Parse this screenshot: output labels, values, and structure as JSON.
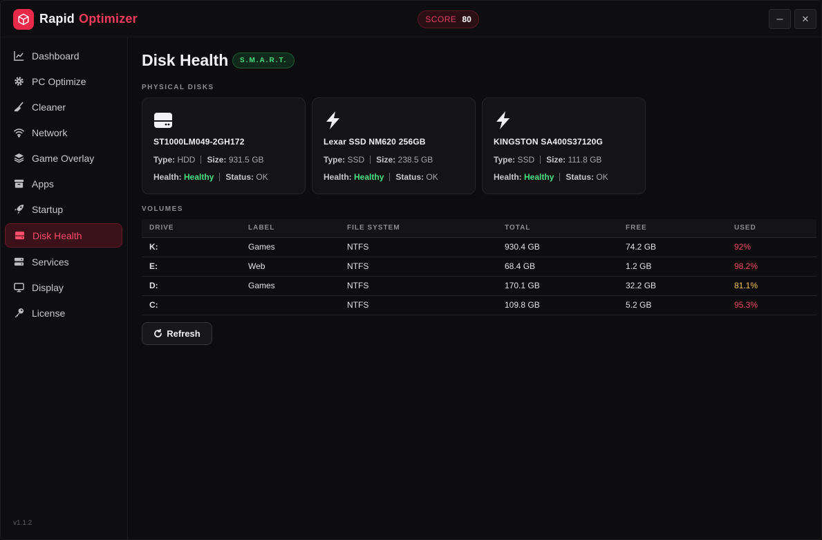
{
  "app": {
    "name_part1": "Rapid",
    "name_part2": "Optimizer",
    "score_label": "SCORE",
    "score_value": "80",
    "minimize_label": "–",
    "close_label": "✕",
    "version": "v1.1.2"
  },
  "sidebar": {
    "items": [
      {
        "label": "Dashboard",
        "icon": "chart-line-icon"
      },
      {
        "label": "PC Optimize",
        "icon": "gear-icon"
      },
      {
        "label": "Cleaner",
        "icon": "broom-icon"
      },
      {
        "label": "Network",
        "icon": "wifi-icon"
      },
      {
        "label": "Game Overlay",
        "icon": "layers-icon"
      },
      {
        "label": "Apps",
        "icon": "archive-icon"
      },
      {
        "label": "Startup",
        "icon": "rocket-icon"
      },
      {
        "label": "Disk Health",
        "icon": "hard-drive-icon",
        "active": true
      },
      {
        "label": "Services",
        "icon": "server-icon"
      },
      {
        "label": "Display",
        "icon": "monitor-icon"
      },
      {
        "label": "License",
        "icon": "key-icon"
      }
    ]
  },
  "page": {
    "title": "Disk Health",
    "badge": "S.M.A.R.T.",
    "physical_label": "PHYSICAL DISKS",
    "volumes_label": "VOLUMES",
    "refresh_label": "Refresh"
  },
  "labels": {
    "type": "Type:",
    "size": "Size:",
    "health": "Health:",
    "status": "Status:"
  },
  "disks": [
    {
      "icon": "hdd-icon",
      "name": "ST1000LM049-2GH172",
      "type": "HDD",
      "size": "931.5 GB",
      "health": "Healthy",
      "status": "OK"
    },
    {
      "icon": "lightning-icon",
      "name": "Lexar SSD NM620 256GB",
      "type": "SSD",
      "size": "238.5 GB",
      "health": "Healthy",
      "status": "OK"
    },
    {
      "icon": "lightning-icon",
      "name": "KINGSTON SA400S37120G",
      "type": "SSD",
      "size": "111.8 GB",
      "health": "Healthy",
      "status": "OK"
    }
  ],
  "volumes": {
    "columns": [
      "DRIVE",
      "LABEL",
      "FILE SYSTEM",
      "TOTAL",
      "FREE",
      "USED"
    ],
    "rows": [
      {
        "drive": "K:",
        "label": "Games",
        "fs": "NTFS",
        "total": "930.4 GB",
        "free": "74.2 GB",
        "used": "92%",
        "used_color": "#ef4a63"
      },
      {
        "drive": "E:",
        "label": "Web",
        "fs": "NTFS",
        "total": "68.4 GB",
        "free": "1.2 GB",
        "used": "98.2%",
        "used_color": "#ef4a63"
      },
      {
        "drive": "D:",
        "label": "Games",
        "fs": "NTFS",
        "total": "170.1 GB",
        "free": "32.2 GB",
        "used": "81.1%",
        "used_color": "#f5c451"
      },
      {
        "drive": "C:",
        "label": "",
        "fs": "NTFS",
        "total": "109.8 GB",
        "free": "5.2 GB",
        "used": "95.3%",
        "used_color": "#ef4a63"
      }
    ]
  },
  "colors": {
    "accent": "#e8294a",
    "healthy": "#4ade80",
    "warning": "#f5c451",
    "danger": "#ef4a63"
  }
}
